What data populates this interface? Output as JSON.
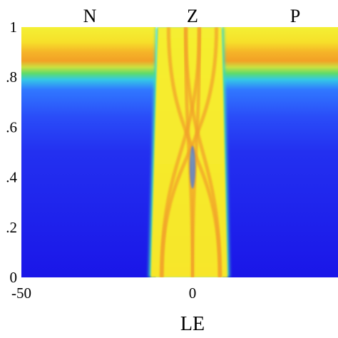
{
  "chart_data": {
    "type": "heatmap",
    "title": "",
    "xlabel": "LE",
    "ylabel": "",
    "xlim": [
      -50,
      50
    ],
    "ylim": [
      0,
      1
    ],
    "x_ticks": [
      {
        "value": -50,
        "label": "-50"
      },
      {
        "value": 0,
        "label": "0"
      }
    ],
    "y_ticks": [
      {
        "value": 0,
        "label": "0"
      },
      {
        "value": 0.2,
        "label": ".2"
      },
      {
        "value": 0.4,
        "label": ".4"
      },
      {
        "value": 0.6,
        "label": ".6"
      },
      {
        "value": 0.8,
        "label": ".8"
      },
      {
        "value": 1,
        "label": "1"
      }
    ],
    "region_labels": [
      {
        "label": "N",
        "x": -30
      },
      {
        "label": "Z",
        "x": 0
      },
      {
        "label": "P",
        "x": 30
      }
    ],
    "colormap": [
      "#1c14e8",
      "#2a5cff",
      "#35d6e0",
      "#49e08a",
      "#f2e020",
      "#f6a11e",
      "#ffff33"
    ],
    "membership_bands": {
      "N": {
        "x_range": [
          -50,
          -12
        ],
        "high_y_range": [
          0.86,
          1
        ]
      },
      "P": {
        "x_range": [
          10,
          50
        ],
        "high_y_range": [
          0.86,
          1
        ]
      },
      "Z": {
        "x_range": [
          -12,
          10
        ],
        "crossing_curves_x_at_top": [
          -7,
          -2,
          2,
          7
        ],
        "crossing_curves_x_at_bottom": [
          -9,
          0,
          8
        ]
      }
    }
  }
}
